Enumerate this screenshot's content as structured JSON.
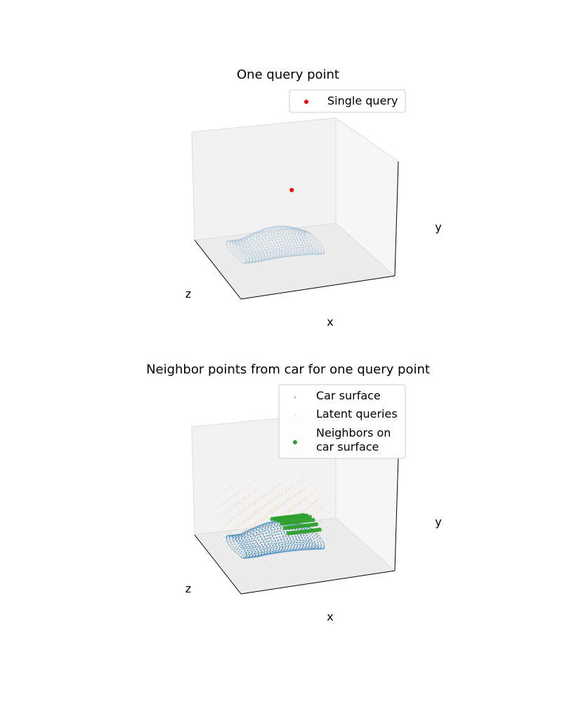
{
  "chart_data": [
    {
      "type": "scatter3d",
      "title": "One query point",
      "xlabel": "x",
      "ylabel": "y",
      "zlabel": "z",
      "grid": false,
      "legend": {
        "placement": "top-right",
        "entries": [
          {
            "label": "Single query",
            "color": "#ff0000"
          }
        ]
      },
      "series": [
        {
          "name": "Car surface",
          "color": "#1f77b4",
          "opacity": 0.25,
          "shown_in_legend": false
        },
        {
          "name": "Single query",
          "color": "#ff0000",
          "points": [
            {
              "x": 0.45,
              "y": 0.62,
              "z": 0.5
            }
          ]
        }
      ]
    },
    {
      "type": "scatter3d",
      "title": "Neighbor points from car for one query point",
      "xlabel": "x",
      "ylabel": "y",
      "zlabel": "z",
      "grid": false,
      "legend": {
        "placement": "top-right",
        "entries": [
          {
            "label": "Car surface",
            "color": "#1f77b4"
          },
          {
            "label": "Latent queries",
            "color": "#ff7f0e"
          },
          {
            "label": "Neighbors on\ncar surface",
            "color": "#2ca02c"
          }
        ]
      },
      "series": [
        {
          "name": "Car surface",
          "color": "#1f77b4",
          "opacity": 0.6
        },
        {
          "name": "Latent queries",
          "color": "#ff7f0e",
          "opacity": 0.3
        },
        {
          "name": "Neighbors on car surface",
          "color": "#2ca02c",
          "opacity": 0.9
        }
      ]
    }
  ]
}
